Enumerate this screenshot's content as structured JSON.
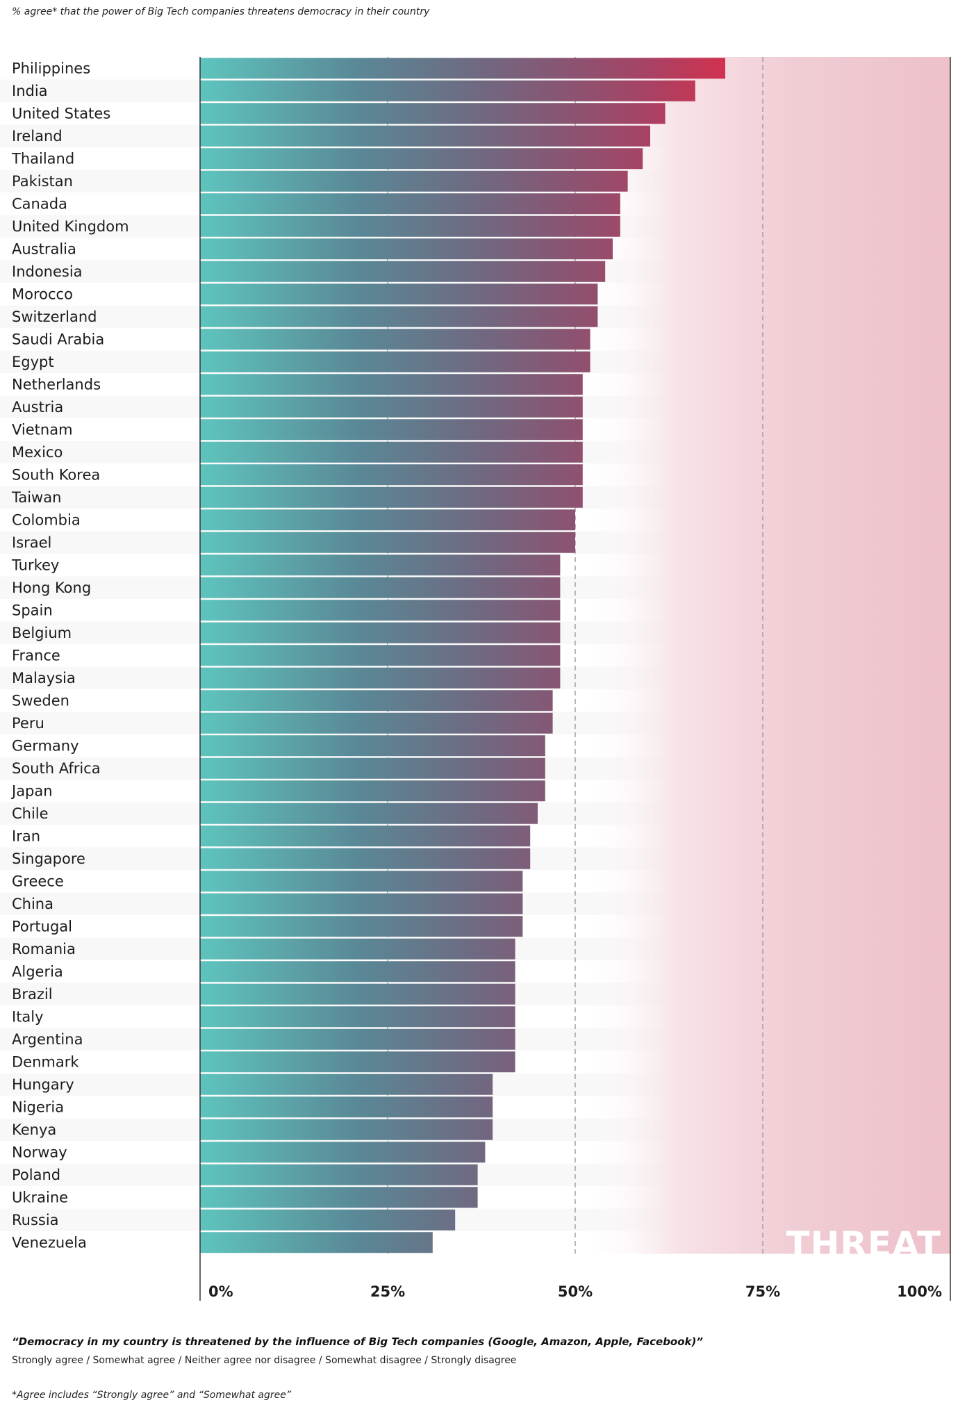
{
  "header": {
    "subtitle": "% agree* that the power of Big Tech companies threatens democracy in their country"
  },
  "footer": {
    "question": "“Democracy in my country is threatened by the influence of Big Tech companies (Google, Amazon, Apple, Facebook)”",
    "scale": "Strongly agree / Somewhat agree / Neither agree nor disagree / Somewhat disagree / Strongly disagree",
    "agree_note": "*Agree includes “Strongly agree” and “Somewhat agree”"
  },
  "chart_data": {
    "type": "bar",
    "orientation": "horizontal",
    "title": "",
    "xlabel": "",
    "ylabel": "",
    "xlim": [
      0,
      100
    ],
    "x_ticks": [
      "0%",
      "25%",
      "50%",
      "75%",
      "100%"
    ],
    "x_tick_values": [
      0,
      25,
      50,
      75,
      100
    ],
    "grid": "dashed vertical lines at 25%, 50%, 75%",
    "background_label": "THREAT",
    "colors": {
      "bar_low": "#5ec4bd",
      "bar_mid": "#746a80",
      "bar_high": "#d03a55",
      "threat_zone": "#eec4cc",
      "row_stripe": "#f8f8f8",
      "gridline": "#a0a0a0"
    },
    "categories": [
      "Philippines",
      "India",
      "United States",
      "Ireland",
      "Thailand",
      "Pakistan",
      "Canada",
      "United Kingdom",
      "Australia",
      "Indonesia",
      "Morocco",
      "Switzerland",
      "Saudi Arabia",
      "Egypt",
      "Netherlands",
      "Austria",
      "Vietnam",
      "Mexico",
      "South Korea",
      "Taiwan",
      "Colombia",
      "Israel",
      "Turkey",
      "Hong Kong",
      "Spain",
      "Belgium",
      "France",
      "Malaysia",
      "Sweden",
      "Peru",
      "Germany",
      "South Africa",
      "Japan",
      "Chile",
      "Iran",
      "Singapore",
      "Greece",
      "China",
      "Portugal",
      "Romania",
      "Algeria",
      "Brazil",
      "Italy",
      "Argentina",
      "Denmark",
      "Hungary",
      "Nigeria",
      "Kenya",
      "Norway",
      "Poland",
      "Ukraine",
      "Russia",
      "Venezuela"
    ],
    "values": [
      70,
      66,
      62,
      60,
      59,
      57,
      56,
      56,
      55,
      54,
      53,
      53,
      52,
      52,
      51,
      51,
      51,
      51,
      51,
      51,
      50,
      50,
      48,
      48,
      48,
      48,
      48,
      48,
      47,
      47,
      46,
      46,
      46,
      45,
      44,
      44,
      43,
      43,
      43,
      42,
      42,
      42,
      42,
      42,
      42,
      39,
      39,
      39,
      38,
      37,
      37,
      34,
      31
    ]
  }
}
